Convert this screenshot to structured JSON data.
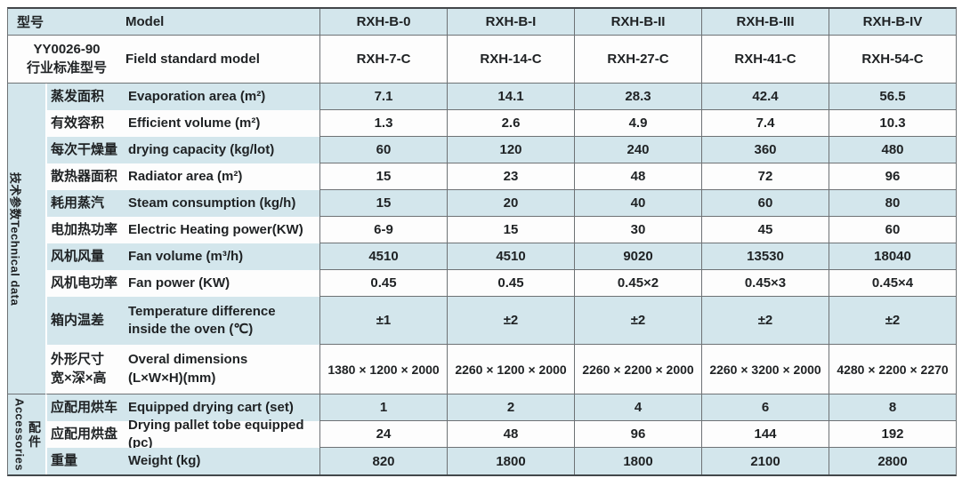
{
  "table": {
    "header": {
      "model_cn": "型号",
      "model_en": "Model",
      "models": [
        "RXH-B-0",
        "RXH-B-I",
        "RXH-B-II",
        "RXH-B-III",
        "RXH-B-IV"
      ],
      "standard_cn": "YY0026-90\n行业标准型号",
      "standard_en": "Field standard model",
      "standards": [
        "RXH-7-C",
        "RXH-14-C",
        "RXH-27-C",
        "RXH-41-C",
        "RXH-54-C"
      ]
    },
    "sections": {
      "technical": "技术参数Technical data",
      "accessories_en": "Accessories",
      "accessories_cn": "配件"
    },
    "rows": [
      {
        "cn": "蒸发面积",
        "en": "Evaporation area (m²)",
        "values": [
          "7.1",
          "14.1",
          "28.3",
          "42.4",
          "56.5"
        ]
      },
      {
        "cn": "有效容积",
        "en": "Efficient volume (m²)",
        "values": [
          "1.3",
          "2.6",
          "4.9",
          "7.4",
          "10.3"
        ]
      },
      {
        "cn": "每次干燥量",
        "en": "drying capacity (kg/lot)",
        "values": [
          "60",
          "120",
          "240",
          "360",
          "480"
        ]
      },
      {
        "cn": "散热器面积",
        "en": "Radiator area (m²)",
        "values": [
          "15",
          "23",
          "48",
          "72",
          "96"
        ]
      },
      {
        "cn": "耗用蒸汽",
        "en": "Steam consumption (kg/h)",
        "values": [
          "15",
          "20",
          "40",
          "60",
          "80"
        ]
      },
      {
        "cn": "电加热功率",
        "en": "Electric Heating power(KW)",
        "values": [
          "6-9",
          "15",
          "30",
          "45",
          "60"
        ]
      },
      {
        "cn": "风机风量",
        "en": "Fan volume (m³/h)",
        "values": [
          "4510",
          "4510",
          "9020",
          "13530",
          "18040"
        ]
      },
      {
        "cn": "风机电功率",
        "en": "Fan power (KW)",
        "values": [
          "0.45",
          "0.45",
          "0.45×2",
          "0.45×3",
          "0.45×4"
        ]
      },
      {
        "cn": "箱内温差",
        "en": "Temperature difference\ninside the oven (℃)",
        "values": [
          "±1",
          "±2",
          "±2",
          "±2",
          "±2"
        ]
      },
      {
        "cn": "外形尺寸\n宽×深×高",
        "en": "Overal dimensions\n(L×W×H)(mm)",
        "values": [
          "1380 × 1200 × 2000",
          "2260 × 1200 × 2000",
          "2260 × 2200 × 2000",
          "2260 × 3200 × 2000",
          "4280 × 2200 × 2270"
        ]
      },
      {
        "cn": "应配用烘车",
        "en": "Equipped drying cart (set)",
        "values": [
          "1",
          "2",
          "4",
          "6",
          "8"
        ]
      },
      {
        "cn": "应配用烘盘",
        "en": "Drying pallet tobe equipped (pc)",
        "values": [
          "24",
          "48",
          "96",
          "144",
          "192"
        ]
      },
      {
        "cn": "重量",
        "en": "Weight (kg)",
        "values": [
          "820",
          "1800",
          "1800",
          "2100",
          "2800"
        ]
      }
    ]
  },
  "colors": {
    "row_blue": "#d3e6ec",
    "row_white": "#fdfdfd",
    "grid_line": "#6e7275",
    "text": "#1f2224"
  }
}
